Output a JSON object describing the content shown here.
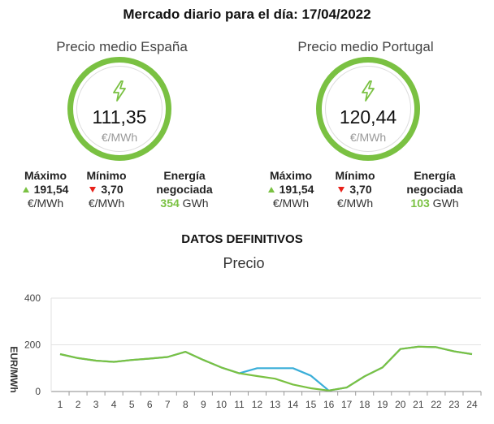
{
  "title": "Mercado diario para el día: 17/04/2022",
  "colors": {
    "accent_green": "#7ac142",
    "down_red": "#e8211a",
    "line_portugal": "#3aaed8",
    "line_spain": "#7ac142"
  },
  "panels": [
    {
      "heading": "Precio medio España",
      "icon": "lightning-icon",
      "value": "111,35",
      "unit": "€/MWh",
      "max": {
        "label": "Máximo",
        "value": "191,54",
        "unit": "€/MWh",
        "icon": "triangle-up-icon"
      },
      "min": {
        "label": "Mínimo",
        "value": "3,70",
        "unit": "€/MWh",
        "icon": "triangle-down-icon"
      },
      "energy": {
        "label": "Energía negociada",
        "value": "354",
        "unit": "GWh"
      }
    },
    {
      "heading": "Precio medio Portugal",
      "icon": "lightning-icon",
      "value": "120,44",
      "unit": "€/MWh",
      "max": {
        "label": "Máximo",
        "value": "191,54",
        "unit": "€/MWh",
        "icon": "triangle-up-icon"
      },
      "min": {
        "label": "Mínimo",
        "value": "3,70",
        "unit": "€/MWh",
        "icon": "triangle-down-icon"
      },
      "energy": {
        "label": "Energía negociada",
        "value": "103",
        "unit": "GWh"
      }
    }
  ],
  "section_title": "DATOS DEFINITIVOS",
  "chart_data": {
    "type": "line",
    "title": "Precio",
    "xlabel": "",
    "ylabel": "EUR/MWh",
    "x": [
      1,
      2,
      3,
      4,
      5,
      6,
      7,
      8,
      9,
      10,
      11,
      12,
      13,
      14,
      15,
      16,
      17,
      18,
      19,
      20,
      21,
      22,
      23,
      24
    ],
    "ylim": [
      0,
      400
    ],
    "yticks": [
      0,
      200,
      400
    ],
    "grid": "horizontal",
    "legend": "none",
    "series": [
      {
        "color": "#3aaed8",
        "values": [
          160,
          143,
          132,
          127,
          135,
          141,
          148,
          170,
          135,
          103,
          78,
          100,
          100,
          100,
          68,
          4,
          17,
          65,
          103,
          182,
          192,
          190,
          172,
          160
        ]
      },
      {
        "color": "#7ac142",
        "values": [
          160,
          143,
          132,
          127,
          135,
          141,
          148,
          170,
          135,
          103,
          78,
          66,
          55,
          30,
          14,
          4,
          17,
          65,
          103,
          182,
          192,
          190,
          172,
          160
        ]
      }
    ]
  }
}
